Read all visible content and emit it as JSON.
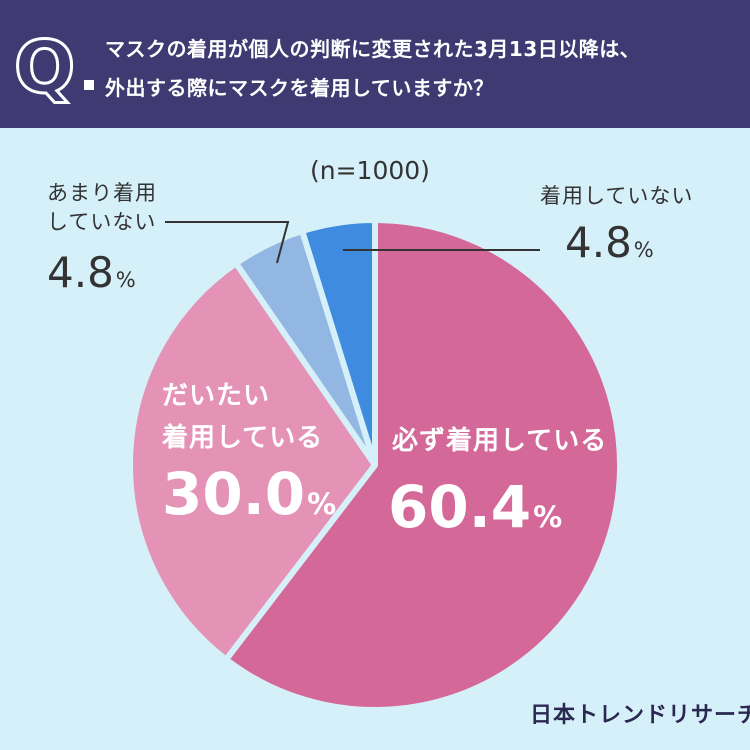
{
  "header": {
    "q_letter": "Q",
    "question_line1": "マスクの着用が個人の判断に変更された3月13日以降は、",
    "question_line2": "外出する際にマスクを着用していますか？"
  },
  "chart_data": {
    "type": "pie",
    "sample_note": "(n=1000)",
    "unit": "%",
    "categories": [
      "必ず着用している",
      "だいたい着用している",
      "あまり着用していない",
      "着用していない"
    ],
    "values": [
      60.4,
      30.0,
      4.8,
      4.8
    ],
    "labels": [
      {
        "name_lines": [
          "必ず着用している"
        ],
        "value_text": "60.4",
        "unit": "%"
      },
      {
        "name_lines": [
          "だいたい",
          "着用している"
        ],
        "value_text": "30.0",
        "unit": "%"
      },
      {
        "name_lines": [
          "あまり着用",
          "していない"
        ],
        "value_text": "4.8",
        "unit": "%"
      },
      {
        "name_lines": [
          "着用していない"
        ],
        "value_text": "4.8",
        "unit": "%"
      }
    ],
    "colors": [
      "#d46898",
      "#e493b7",
      "#93b7e3",
      "#3f8be0"
    ]
  },
  "footer": {
    "brand": "日本トレンドリサーチ"
  }
}
